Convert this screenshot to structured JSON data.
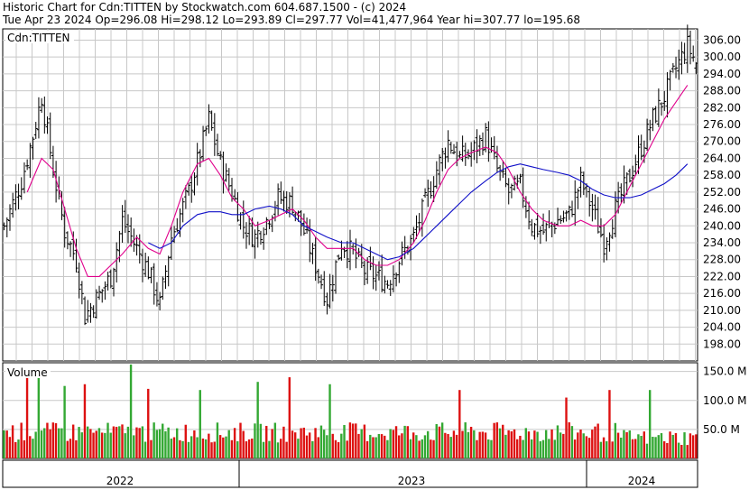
{
  "header": {
    "line1": "Historic Chart for Cdn:TITTEN by Stockwatch.com 604.687.1500 - (c) 2024",
    "line2": "Tue Apr 23 2024   Op=296.08   Hi=298.12   Lo=293.89   Cl=297.77   Vol=41,477,964   Year hi=307.77   lo=195.68"
  },
  "colors": {
    "price_bars": "#000000",
    "ma_short": "#e0008c",
    "ma_long": "#1010c8",
    "volume_up": "#33a833",
    "volume_down": "#dd1111",
    "grid": "#c8c8c8"
  },
  "chart_data": [
    {
      "type": "ohlc",
      "symbol_label": "Cdn:TITTEN",
      "ylim": [
        192,
        310
      ],
      "y_ticks": [
        "306.00",
        "300.00",
        "294.00",
        "288.00",
        "282.00",
        "276.00",
        "270.00",
        "264.00",
        "258.00",
        "252.00",
        "246.00",
        "240.00",
        "234.00",
        "228.00",
        "222.00",
        "216.00",
        "210.00",
        "204.00",
        "198.00"
      ],
      "x_labels": [
        "2022",
        "2023",
        "2024"
      ],
      "last_bar": {
        "open": 296.08,
        "high": 298.12,
        "low": 293.89,
        "close": 297.77
      },
      "year_high": 307.77,
      "year_low": 195.68,
      "close_path": [
        [
          0,
          240
        ],
        [
          6,
          256
        ],
        [
          10,
          272
        ],
        [
          13,
          286
        ],
        [
          17,
          260
        ],
        [
          21,
          238
        ],
        [
          25,
          228
        ],
        [
          28,
          208
        ],
        [
          32,
          214
        ],
        [
          37,
          222
        ],
        [
          41,
          242
        ],
        [
          46,
          232
        ],
        [
          50,
          224
        ],
        [
          54,
          212
        ],
        [
          58,
          236
        ],
        [
          64,
          252
        ],
        [
          68,
          266
        ],
        [
          71,
          278
        ],
        [
          75,
          262
        ],
        [
          79,
          252
        ],
        [
          83,
          240
        ],
        [
          87,
          236
        ],
        [
          91,
          242
        ],
        [
          95,
          250
        ],
        [
          100,
          248
        ],
        [
          104,
          238
        ],
        [
          108,
          226
        ],
        [
          112,
          214
        ],
        [
          117,
          234
        ],
        [
          121,
          230
        ],
        [
          125,
          224
        ],
        [
          129,
          222
        ],
        [
          133,
          220
        ],
        [
          137,
          228
        ],
        [
          142,
          236
        ],
        [
          146,
          248
        ],
        [
          150,
          260
        ],
        [
          154,
          270
        ],
        [
          158,
          264
        ],
        [
          162,
          266
        ],
        [
          167,
          272
        ],
        [
          171,
          260
        ],
        [
          175,
          252
        ],
        [
          179,
          254
        ],
        [
          183,
          240
        ],
        [
          187,
          238
        ],
        [
          192,
          242
        ],
        [
          196,
          244
        ],
        [
          200,
          256
        ],
        [
          204,
          246
        ],
        [
          208,
          234
        ],
        [
          212,
          246
        ],
        [
          217,
          258
        ],
        [
          221,
          268
        ],
        [
          225,
          278
        ],
        [
          229,
          286
        ],
        [
          233,
          296
        ],
        [
          237,
          304
        ],
        [
          240,
          298
        ]
      ],
      "series": [
        {
          "name": "",
          "type": "moving-average-short",
          "values": [
            [
              8,
              252
            ],
            [
              13,
              264
            ],
            [
              17,
              260
            ],
            [
              21,
              246
            ],
            [
              25,
              232
            ],
            [
              29,
              222
            ],
            [
              33,
              222
            ],
            [
              37,
              226
            ],
            [
              41,
              230
            ],
            [
              46,
              236
            ],
            [
              50,
              232
            ],
            [
              54,
              230
            ],
            [
              58,
              240
            ],
            [
              62,
              252
            ],
            [
              67,
              262
            ],
            [
              71,
              264
            ],
            [
              75,
              258
            ],
            [
              79,
              250
            ],
            [
              83,
              246
            ],
            [
              87,
              240
            ],
            [
              92,
              242
            ],
            [
              96,
              244
            ],
            [
              100,
              246
            ],
            [
              104,
              242
            ],
            [
              108,
              236
            ],
            [
              112,
              232
            ],
            [
              117,
              232
            ],
            [
              121,
              232
            ],
            [
              125,
              228
            ],
            [
              129,
              226
            ],
            [
              133,
              226
            ],
            [
              137,
              228
            ],
            [
              142,
              234
            ],
            [
              146,
              242
            ],
            [
              150,
              252
            ],
            [
              154,
              260
            ],
            [
              158,
              264
            ],
            [
              162,
              266
            ],
            [
              167,
              268
            ],
            [
              171,
              266
            ],
            [
              175,
              260
            ],
            [
              179,
              252
            ],
            [
              183,
              246
            ],
            [
              187,
              242
            ],
            [
              192,
              240
            ],
            [
              196,
              240
            ],
            [
              200,
              242
            ],
            [
              204,
              240
            ],
            [
              208,
              240
            ],
            [
              212,
              244
            ],
            [
              217,
              254
            ],
            [
              221,
              262
            ],
            [
              225,
              270
            ],
            [
              229,
              278
            ],
            [
              233,
              284
            ],
            [
              237,
              290
            ]
          ]
        },
        {
          "name": "",
          "type": "moving-average-long",
          "values": [
            [
              50,
              234
            ],
            [
              54,
              232
            ],
            [
              58,
              234
            ],
            [
              62,
              240
            ],
            [
              67,
              244
            ],
            [
              71,
              245
            ],
            [
              75,
              245
            ],
            [
              79,
              244
            ],
            [
              83,
              244
            ],
            [
              87,
              246
            ],
            [
              92,
              247
            ],
            [
              96,
              246
            ],
            [
              100,
              244
            ],
            [
              104,
              240
            ],
            [
              108,
              238
            ],
            [
              112,
              236
            ],
            [
              117,
              234
            ],
            [
              121,
              234
            ],
            [
              125,
              232
            ],
            [
              129,
              230
            ],
            [
              133,
              228
            ],
            [
              137,
              229
            ],
            [
              142,
              232
            ],
            [
              146,
              236
            ],
            [
              150,
              240
            ],
            [
              154,
              244
            ],
            [
              158,
              248
            ],
            [
              162,
              252
            ],
            [
              167,
              256
            ],
            [
              171,
              259
            ],
            [
              175,
              261
            ],
            [
              179,
              262
            ],
            [
              183,
              261
            ],
            [
              187,
              260
            ],
            [
              192,
              259
            ],
            [
              196,
              258
            ],
            [
              200,
              256
            ],
            [
              204,
              253
            ],
            [
              208,
              251
            ],
            [
              212,
              250
            ],
            [
              217,
              250
            ],
            [
              221,
              251
            ],
            [
              225,
              253
            ],
            [
              229,
              255
            ],
            [
              233,
              258
            ],
            [
              237,
              262
            ]
          ]
        }
      ]
    },
    {
      "type": "bar",
      "title": "Volume",
      "ylim": [
        0,
        165
      ],
      "y_ticks": [
        "150.0 M",
        "100.0 M",
        "50.0 M"
      ],
      "unit": "M",
      "bar_count": 240,
      "baseline_M": 50,
      "last_bar_M": 41.48,
      "spikes_M": [
        [
          8,
          158
        ],
        [
          12,
          142
        ],
        [
          21,
          125
        ],
        [
          28,
          128
        ],
        [
          44,
          162
        ],
        [
          50,
          120
        ],
        [
          68,
          118
        ],
        [
          88,
          132
        ],
        [
          99,
          140
        ],
        [
          113,
          128
        ],
        [
          158,
          118
        ],
        [
          195,
          105
        ],
        [
          210,
          118
        ],
        [
          224,
          118
        ]
      ]
    }
  ]
}
